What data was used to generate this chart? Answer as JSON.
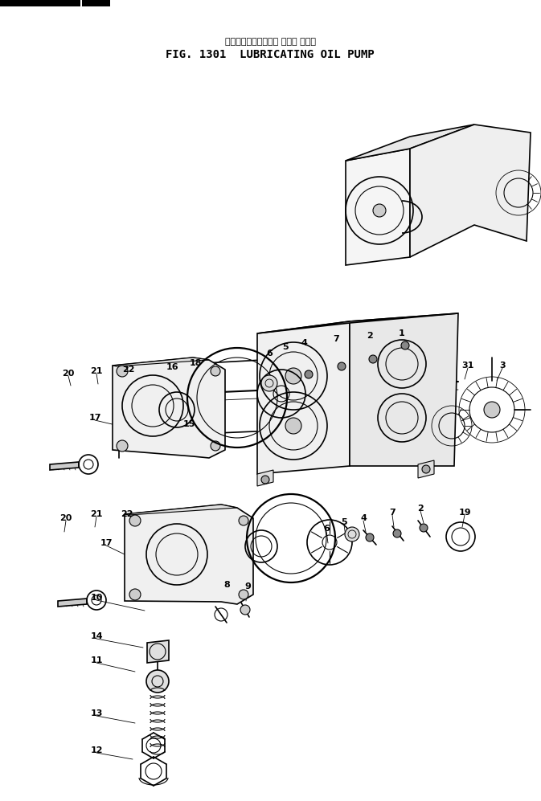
{
  "title_jp": "ルーブリケーティング オイル ポンプ",
  "title_en": "FIG. 1301  LUBRICATING OIL PUMP",
  "bg_color": "#ffffff",
  "fig_width": 6.73,
  "fig_height": 9.97,
  "dpi": 100
}
